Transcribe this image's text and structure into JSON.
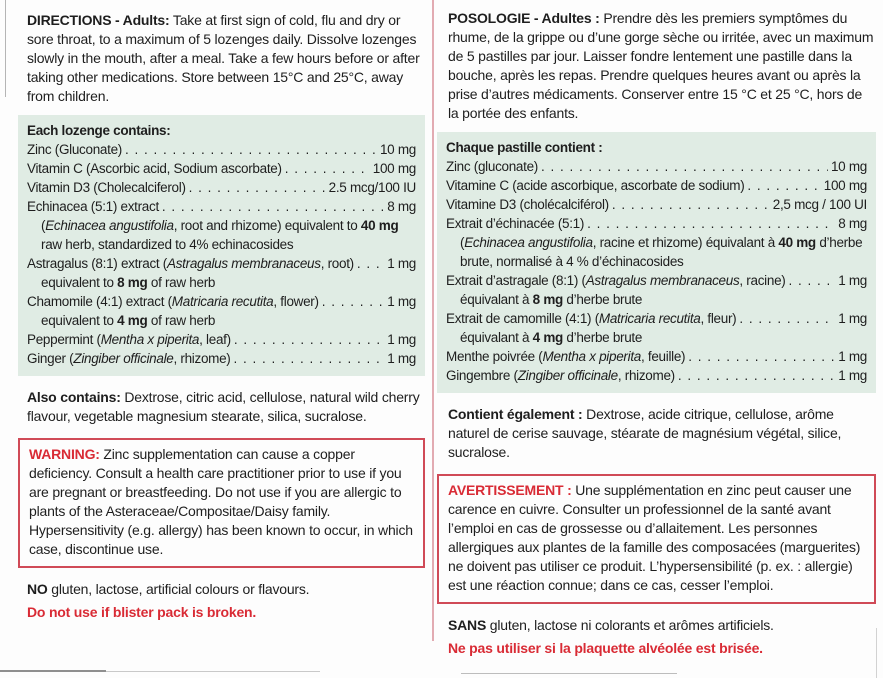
{
  "colors": {
    "panel_green": "#e0ece4",
    "warning_border": "#d04a57",
    "red_text": "#d92b35",
    "divider_pink": "#e2abb2",
    "body_text": "#1e1e1e"
  },
  "left": {
    "directions": {
      "lead": "DIRECTIONS - Adults:",
      "body": " Take at first sign of cold, flu and dry or sore throat, to a maximum of 5 lozenges daily. Dissolve lozenges slowly in the mouth, after a meal. Take a few hours before or after taking other medications. Store between 15°C and 25°C, away from children."
    },
    "panel": {
      "title": "Each lozenge contains:",
      "rows": [
        {
          "pre": "Zinc (Gluconate)",
          "value": "10 mg"
        },
        {
          "pre": "Vitamin C (Ascorbic acid, Sodium ascorbate)",
          "value": "100 mg"
        },
        {
          "pre": "Vitamin D3 (Cholecalciferol)",
          "value": "2.5 mcg/100 IU"
        },
        {
          "pre": "Echinacea (5:1) extract",
          "value": "8 mg",
          "sub": {
            "pre": "(",
            "latin": "Echinacea angustifolia",
            "mid": ", root and rhizome) equivalent to ",
            "bold": "40 mg",
            "tail": " raw herb, standardized to 4% echinacosides"
          }
        },
        {
          "pre": "Astragalus (8:1) extract (",
          "latin": "Astragalus membranaceus",
          "post": ", root)",
          "value": "1 mg",
          "sub": {
            "pre": "equivalent to ",
            "bold": "8 mg",
            "tail": " of raw herb"
          }
        },
        {
          "pre": "Chamomile (4:1) extract (",
          "latin": "Matricaria recutita",
          "post": ", flower)",
          "value": "1 mg",
          "sub": {
            "pre": "equivalent to ",
            "bold": "4 mg",
            "tail": " of raw herb"
          }
        },
        {
          "pre": "Peppermint (",
          "latin": "Mentha x piperita",
          "post": ", leaf)",
          "value": "1 mg"
        },
        {
          "pre": "Ginger (",
          "latin": "Zingiber officinale",
          "post": ", rhizome)",
          "value": "1 mg"
        }
      ]
    },
    "also_contains": {
      "lead": "Also contains:",
      "body": " Dextrose, citric acid, cellulose, natural wild cherry flavour, vegetable magnesium stearate, silica, sucralose."
    },
    "warning": {
      "lead": "WARNING:",
      "body": " Zinc supplementation can cause a copper deficiency. Consult a health care practitioner prior to use if you are pregnant or breastfeeding. Do not use if you are allergic to plants of the Asteraceae/Compositae/Daisy family. Hypersensitivity (e.g. allergy) has been known to occur, in which case, discontinue use."
    },
    "no_claims": {
      "lead": "NO",
      "body": " gluten, lactose, artificial colours or flavours."
    },
    "blister_warning": "Do not use if blister pack is broken."
  },
  "right": {
    "posologie": {
      "lead": "POSOLOGIE - Adultes :",
      "body": " Prendre dès les premiers symptômes du rhume, de la grippe ou d’une gorge sèche ou irritée, avec un maximum de 5 pastilles par jour. Laisser fondre lentement une pastille dans la bouche, après les repas. Prendre quelques heures avant ou après la prise d’autres médicaments. Conserver entre 15 °C et 25 °C, hors de la portée des enfants."
    },
    "panel": {
      "title": "Chaque pastille contient :",
      "rows": [
        {
          "pre": "Zinc (gluconate)",
          "value": "10 mg"
        },
        {
          "pre": "Vitamine C (acide ascorbique, ascorbate de sodium)",
          "value": "100 mg"
        },
        {
          "pre": "Vitamine D3 (cholécalciférol)",
          "value": "2,5 mcg / 100 UI"
        },
        {
          "pre": "Extrait d’échinacée (5:1)",
          "value": "8 mg",
          "sub": {
            "pre": "(",
            "latin": "Echinacea angustifolia",
            "mid": ", racine et rhizome) équivalant à ",
            "bold": "40 mg",
            "tail": " d’herbe brute, normalisé à 4 % d’échinacosides"
          }
        },
        {
          "pre": "Extrait d’astragale (8:1) (",
          "latin": "Astragalus membranaceus",
          "post": ", racine)",
          "value": "1 mg",
          "sub": {
            "pre": "équivalant à ",
            "bold": "8 mg",
            "tail": " d’herbe brute"
          }
        },
        {
          "pre": "Extrait de camomille (4:1) (",
          "latin": "Matricaria recutita",
          "post": ", fleur)",
          "value": "1 mg",
          "sub": {
            "pre": "équivalant à ",
            "bold": "4 mg",
            "tail": " d’herbe brute"
          }
        },
        {
          "pre": "Menthe poivrée (",
          "latin": "Mentha x piperita",
          "post": ", feuille)",
          "value": "1 mg"
        },
        {
          "pre": "Gingembre (",
          "latin": "Zingiber officinale",
          "post": ", rhizome)",
          "value": "1 mg"
        }
      ]
    },
    "contient": {
      "lead": "Contient également :",
      "body": " Dextrose, acide citrique, cellulose, arôme naturel de cerise sauvage, stéarate de magnésium végétal, silice, sucralose."
    },
    "avertissement": {
      "lead": "AVERTISSEMENT :",
      "body": " Une supplémentation en zinc peut causer une carence en cuivre. Consulter un professionnel de la santé avant l’emploi en cas de grossesse ou d’allaitement. Les personnes allergiques aux plantes de la famille des composacées (marguerites) ne doivent pas utiliser ce produit. L’hypersensibilité (p. ex. : allergie) est une réaction connue; dans ce cas, cesser l’emploi."
    },
    "sans": {
      "lead": "SANS",
      "body": " gluten, lactose ni colorants et arômes artificiels."
    },
    "blister_warning": "Ne pas utiliser si la plaquette alvéolée est brisée."
  }
}
